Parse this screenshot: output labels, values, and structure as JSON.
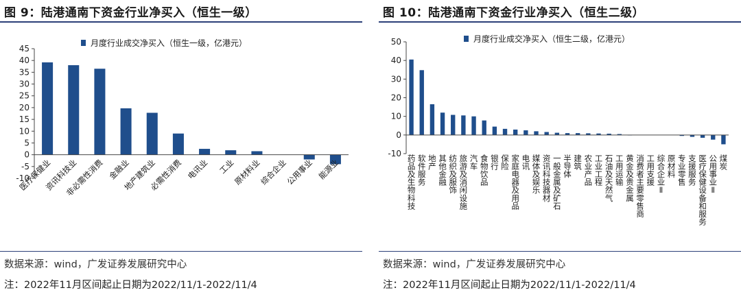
{
  "colors": {
    "bar": "#1f4e8c",
    "axis": "#444444",
    "rule": "#2b3f78"
  },
  "left": {
    "title": "图 9：陆港通南下资金行业净买入（恒生一级）",
    "source": "数据来源：wind，广发证券发展研究中心",
    "note": "注：2022年11月区间起止日期为2022/11/1-2022/11/4"
  },
  "right": {
    "title": "图 10：陆港通南下资金行业净买入（恒生二级）",
    "source": "数据来源：wind，广发证券发展研究中心",
    "note": "注：2022年11月区间起止日期为2022/11/1-2022/11/4"
  },
  "chart_data": [
    {
      "type": "bar",
      "title": "图 9：陆港通南下资金行业净买入（恒生一级）",
      "legend": "月度行业成交净买入（恒生一级，亿港元）",
      "legend_position": "top",
      "ylim": [
        -10,
        45
      ],
      "yticks": [
        45,
        40,
        35,
        30,
        25,
        20,
        15,
        10,
        5,
        0,
        -5,
        -10
      ],
      "categories": [
        "医疗保健业",
        "资讯科技业",
        "非必需性消费",
        "金融业",
        "地产建筑业",
        "必需性消费",
        "电讯业",
        "工业",
        "原材料业",
        "综合企业",
        "公用事业",
        "能源业"
      ],
      "values": [
        39.2,
        38.0,
        36.5,
        19.7,
        17.8,
        9.0,
        2.5,
        1.9,
        1.5,
        0.0,
        -2.0,
        -4.0
      ]
    },
    {
      "type": "bar",
      "title": "图 10：陆港通南下资金行业净买入（恒生二级）",
      "legend": "月度行业成交净买入（恒生二级，亿港元）",
      "legend_position": "top",
      "ylim": [
        -10,
        50
      ],
      "yticks": [
        50,
        40,
        30,
        20,
        10,
        0,
        -10
      ],
      "categories": [
        "药品及生物科技",
        "软件服务",
        "地产",
        "其他金融",
        "纺织及服饰",
        "旅游及消闲设施",
        "汽车",
        "食物饮品",
        "银行",
        "保险",
        "家庭电器及用品",
        "电讯",
        "媒体及娱乐",
        "资讯科技器材",
        "一般金属及矿石",
        "半导体",
        "建筑",
        "农业产品",
        "工业工程",
        "石油及天然气",
        "工用运输",
        "黄金及贵金属",
        "消费者主要零售商",
        "工用支援",
        "综合企业Ⅱ",
        "原材料",
        "专业零售",
        "支援服务",
        "医疗保健设备和服务",
        "公用事业Ⅱ",
        "煤炭"
      ],
      "values": [
        40.5,
        34.8,
        16.5,
        12.0,
        10.8,
        10.5,
        10.0,
        7.8,
        4.5,
        3.3,
        2.9,
        2.5,
        2.0,
        1.6,
        1.2,
        1.0,
        1.0,
        0.9,
        0.8,
        0.7,
        0.5,
        0.1,
        0.0,
        0.0,
        0.0,
        0.0,
        -0.5,
        -1.0,
        -1.5,
        -2.5,
        -5.0
      ]
    }
  ]
}
